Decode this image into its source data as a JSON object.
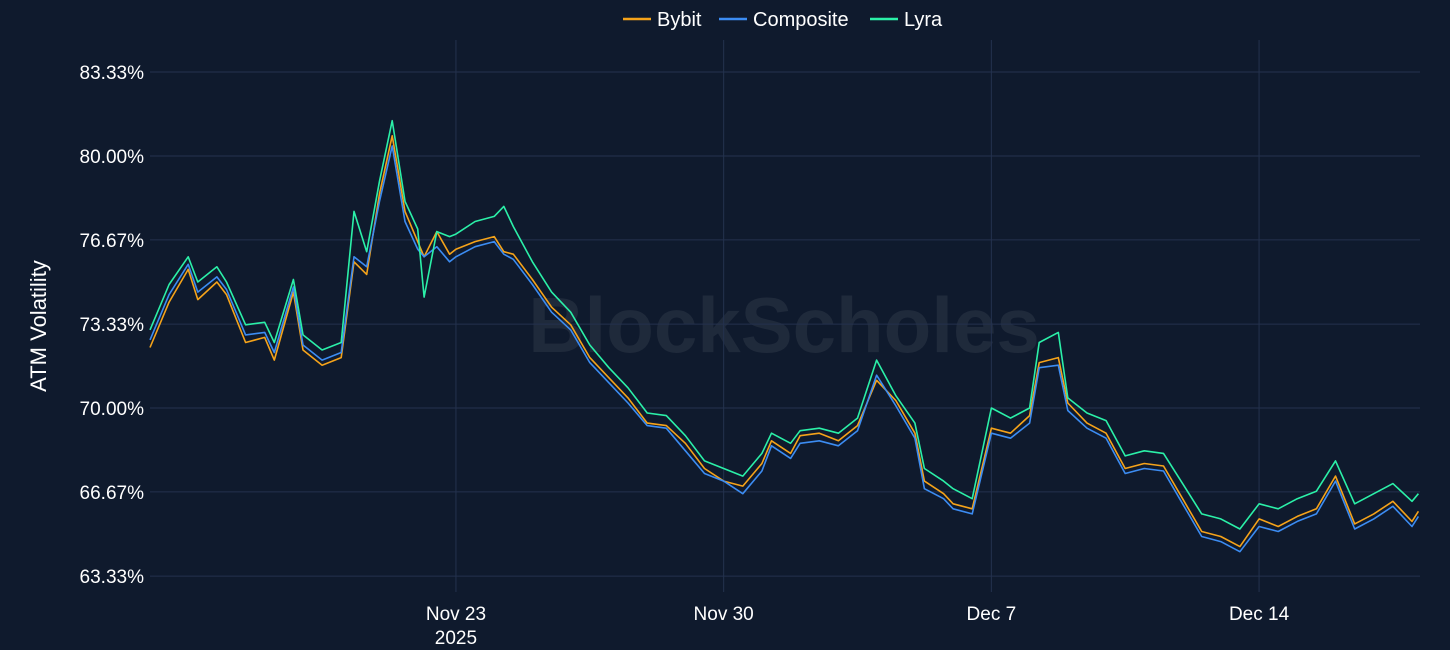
{
  "watermark": "BlockScholes",
  "colors": {
    "background": "#0f1a2d",
    "grid": "#24324e"
  },
  "chart_data": {
    "type": "line",
    "title": "",
    "ylabel": "ATM Volatility",
    "xlabel": "",
    "x_domain": [
      "2025-11-15",
      "2025-12-18T05:00"
    ],
    "y_domain": [
      62.7,
      84.6
    ],
    "y_ticks": [
      "83.33%",
      "80.00%",
      "76.67%",
      "73.33%",
      "70.00%",
      "66.67%",
      "63.33%"
    ],
    "x_ticks": [
      {
        "date": "2025-11-23",
        "label": "Nov 23",
        "sublabel": "2025"
      },
      {
        "date": "2025-11-30",
        "label": "Nov 30"
      },
      {
        "date": "2025-12-07",
        "label": "Dec 7"
      },
      {
        "date": "2025-12-14",
        "label": "Dec 14"
      }
    ],
    "legend": {
      "placement": "top-center"
    },
    "grid": true,
    "x": [
      "2025-11-15",
      "2025-11-15T12:00",
      "2025-11-16",
      "2025-11-16T06:00",
      "2025-11-16T18:00",
      "2025-11-17",
      "2025-11-17T12:00",
      "2025-11-18",
      "2025-11-18T06:00",
      "2025-11-18T18:00",
      "2025-11-19",
      "2025-11-19T12:00",
      "2025-11-20",
      "2025-11-20T08:00",
      "2025-11-20T16:00",
      "2025-11-21",
      "2025-11-21T08:00",
      "2025-11-21T16:00",
      "2025-11-22",
      "2025-11-22T04:00",
      "2025-11-22T12:00",
      "2025-11-22T20:00",
      "2025-11-23",
      "2025-11-23T12:00",
      "2025-11-24",
      "2025-11-24T06:00",
      "2025-11-24T12:00",
      "2025-11-25",
      "2025-11-25T12:00",
      "2025-11-26",
      "2025-11-26T12:00",
      "2025-11-27",
      "2025-11-27T12:00",
      "2025-11-28",
      "2025-11-28T12:00",
      "2025-11-29",
      "2025-11-29T12:00",
      "2025-11-30",
      "2025-11-30T12:00",
      "2025-12-01",
      "2025-12-01T06:00",
      "2025-12-01T18:00",
      "2025-12-02",
      "2025-12-02T12:00",
      "2025-12-03",
      "2025-12-03T12:00",
      "2025-12-04",
      "2025-12-04T12:00",
      "2025-12-05",
      "2025-12-05T06:00",
      "2025-12-05T18:00",
      "2025-12-06",
      "2025-12-06T12:00",
      "2025-12-07",
      "2025-12-07T12:00",
      "2025-12-08",
      "2025-12-08T06:00",
      "2025-12-08T18:00",
      "2025-12-09",
      "2025-12-09T12:00",
      "2025-12-10",
      "2025-12-10T12:00",
      "2025-12-11",
      "2025-12-11T12:00",
      "2025-12-12",
      "2025-12-12T12:00",
      "2025-12-13",
      "2025-12-13T12:00",
      "2025-12-14",
      "2025-12-14T12:00",
      "2025-12-15",
      "2025-12-15T12:00",
      "2025-12-16",
      "2025-12-16T12:00",
      "2025-12-17",
      "2025-12-17T12:00",
      "2025-12-18",
      "2025-12-18T04:00"
    ],
    "series": [
      {
        "name": "Bybit",
        "color": "#f5a31a",
        "values": [
          72.4,
          74.2,
          75.5,
          74.3,
          75.0,
          74.5,
          72.6,
          72.8,
          71.9,
          74.6,
          72.3,
          71.7,
          72.0,
          75.8,
          75.3,
          78.5,
          80.8,
          77.8,
          76.6,
          76.0,
          77.0,
          76.1,
          76.3,
          76.6,
          76.8,
          76.2,
          76.1,
          75.1,
          74.0,
          73.3,
          72.0,
          71.2,
          70.4,
          69.4,
          69.3,
          68.6,
          67.6,
          67.1,
          66.9,
          67.8,
          68.7,
          68.2,
          68.9,
          69.0,
          68.7,
          69.3,
          71.1,
          70.3,
          69.0,
          67.1,
          66.6,
          66.2,
          66.0,
          69.2,
          69.0,
          69.7,
          71.8,
          72.0,
          70.2,
          69.4,
          69.0,
          67.6,
          67.8,
          67.7,
          66.4,
          65.1,
          64.9,
          64.5,
          65.6,
          65.3,
          65.7,
          66.0,
          67.3,
          65.4,
          65.8,
          66.3,
          65.5,
          65.9
        ]
      },
      {
        "name": "Composite",
        "color": "#3c8cf2",
        "values": [
          72.7,
          74.5,
          75.7,
          74.6,
          75.2,
          74.7,
          72.9,
          73.0,
          72.2,
          74.8,
          72.5,
          71.9,
          72.2,
          76.0,
          75.6,
          78.2,
          80.4,
          77.4,
          76.3,
          76.0,
          76.4,
          75.8,
          76.0,
          76.4,
          76.6,
          76.1,
          75.9,
          74.9,
          73.8,
          73.1,
          71.8,
          71.0,
          70.2,
          69.3,
          69.2,
          68.3,
          67.4,
          67.1,
          66.6,
          67.5,
          68.5,
          68.0,
          68.6,
          68.7,
          68.5,
          69.1,
          71.3,
          70.1,
          68.8,
          66.8,
          66.4,
          66.0,
          65.8,
          69.0,
          68.8,
          69.4,
          71.6,
          71.7,
          69.9,
          69.2,
          68.8,
          67.4,
          67.6,
          67.5,
          66.2,
          64.9,
          64.7,
          64.3,
          65.3,
          65.1,
          65.5,
          65.8,
          67.1,
          65.2,
          65.6,
          66.1,
          65.3,
          65.7
        ]
      },
      {
        "name": "Lyra",
        "color": "#2bf0a8",
        "values": [
          73.1,
          74.9,
          76.0,
          75.0,
          75.6,
          75.0,
          73.3,
          73.4,
          72.6,
          75.1,
          72.9,
          72.3,
          72.6,
          77.8,
          76.2,
          79.0,
          81.4,
          78.2,
          77.1,
          74.4,
          77.0,
          76.8,
          76.9,
          77.4,
          77.6,
          78.0,
          77.2,
          75.8,
          74.6,
          73.8,
          72.5,
          71.6,
          70.8,
          69.8,
          69.7,
          68.9,
          67.9,
          67.6,
          67.3,
          68.2,
          69.0,
          68.6,
          69.1,
          69.2,
          69.0,
          69.6,
          71.9,
          70.5,
          69.4,
          67.6,
          67.1,
          66.8,
          66.4,
          70.0,
          69.6,
          70.0,
          72.6,
          73.0,
          70.4,
          69.8,
          69.5,
          68.1,
          68.3,
          68.2,
          67.0,
          65.8,
          65.6,
          65.2,
          66.2,
          66.0,
          66.4,
          66.7,
          67.9,
          66.2,
          66.6,
          67.0,
          66.3,
          66.6
        ]
      }
    ]
  }
}
